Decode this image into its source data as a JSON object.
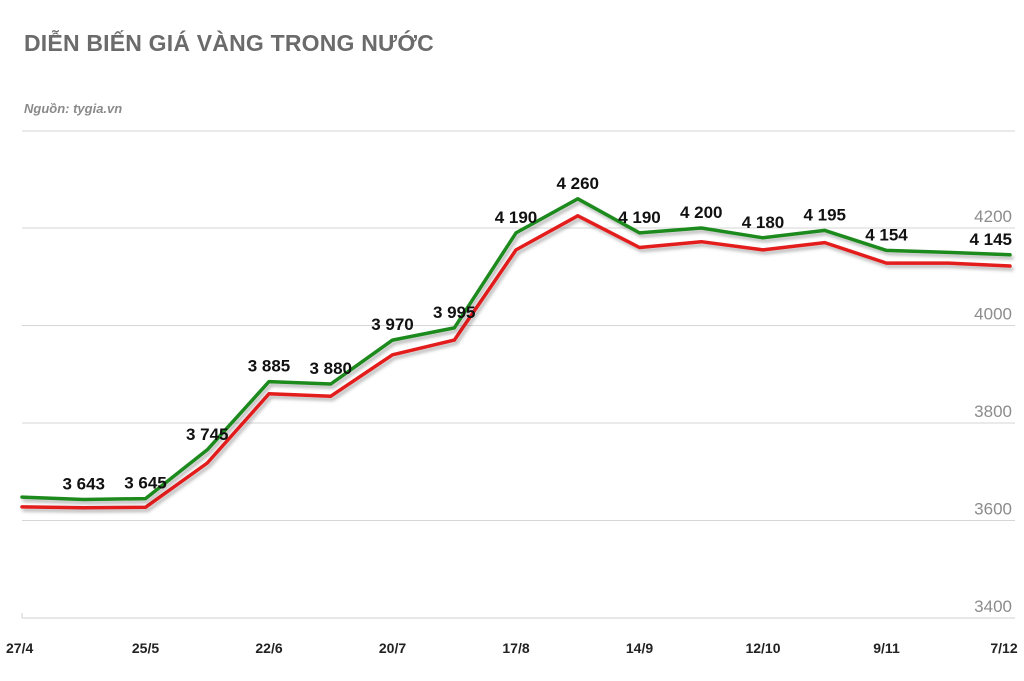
{
  "header": {
    "title": "DIỄN BIẾN GIÁ VÀNG TRONG NƯỚC",
    "source": "Nguồn: tygia.vn"
  },
  "chart_data": {
    "type": "line",
    "title": "DIỄN BIẾN GIÁ VÀNG TRONG NƯỚC",
    "xlabel": "",
    "ylabel": "",
    "ylim": [
      3400,
      4400
    ],
    "yticks": [
      3400,
      3600,
      3800,
      4000,
      4200
    ],
    "grid": true,
    "x": [
      "27/4",
      "11/5",
      "25/5",
      "8/6",
      "22/6",
      "6/7",
      "20/7",
      "3/8",
      "17/8",
      "31/8",
      "14/9",
      "28/9",
      "12/10",
      "26/10",
      "9/11",
      "23/11",
      "7/12"
    ],
    "xtick_labels": [
      "27/4",
      "25/5",
      "22/6",
      "20/7",
      "17/8",
      "14/9",
      "12/10",
      "9/11",
      "7/12"
    ],
    "series": [
      {
        "color": "#1f8a1f",
        "values": [
          3648,
          3643,
          3645,
          3745,
          3885,
          3880,
          3970,
          3995,
          4190,
          4260,
          4190,
          4200,
          4180,
          4195,
          4154,
          4150,
          4145
        ],
        "data_labels": [
          "",
          "3 643",
          "3 645",
          "3 745",
          "3 885",
          "3 880",
          "3 970",
          "3 995",
          "4 190",
          "4 260",
          "4 190",
          "4 200",
          "4 180",
          "4 195",
          "4 154",
          "",
          "4 145"
        ]
      },
      {
        "color": "#e31c1c",
        "values": [
          3628,
          3626,
          3627,
          3718,
          3860,
          3855,
          3940,
          3970,
          4155,
          4225,
          4160,
          4172,
          4155,
          4170,
          4128,
          4128,
          4122
        ]
      }
    ]
  }
}
